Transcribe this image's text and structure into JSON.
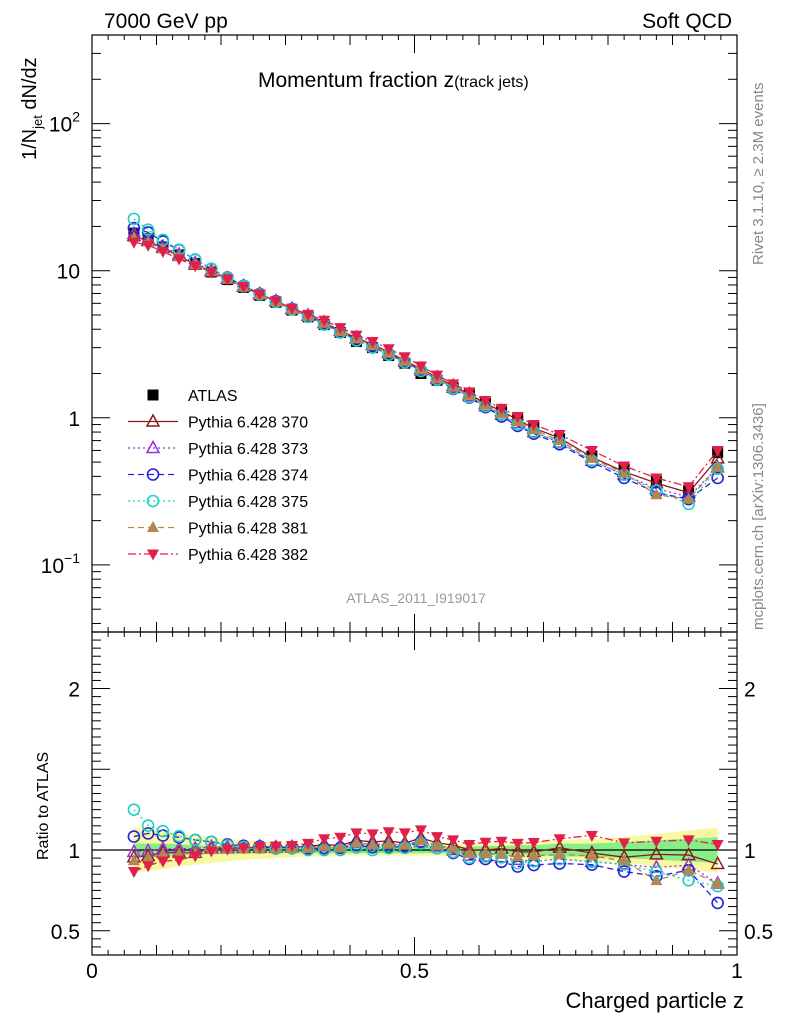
{
  "header": {
    "energy_label": "7000 GeV pp",
    "process_label": "Soft QCD"
  },
  "side_labels": {
    "rivet": "Rivet 3.1.10, ≥ 2.3M events",
    "mcplots": "mcplots.cern.ch [arXiv:1306.3436]"
  },
  "chart_data": [
    {
      "type": "scatter",
      "panel": "main",
      "title_main": "Momentum fraction z",
      "title_sub": "(track jets)",
      "analysis_label": "ATLAS_2011_I919017",
      "ylabel_parts": {
        "a": "1/N",
        "sub": "jet",
        "b": " dN/dz"
      },
      "y_scale": "log",
      "ylim": [
        0.035,
        400
      ],
      "xlim": [
        0,
        1.0
      ],
      "y_ticks": [
        {
          "value": 0.1,
          "base": "10",
          "exp": "−1"
        },
        {
          "value": 1,
          "label": "1"
        },
        {
          "value": 10,
          "label": "10"
        },
        {
          "value": 100,
          "base": "10",
          "exp": "2"
        }
      ],
      "legend_position": "left-middle",
      "x": [
        0.065,
        0.087,
        0.11,
        0.135,
        0.16,
        0.185,
        0.21,
        0.235,
        0.26,
        0.285,
        0.31,
        0.335,
        0.36,
        0.385,
        0.41,
        0.435,
        0.46,
        0.485,
        0.51,
        0.535,
        0.56,
        0.585,
        0.61,
        0.635,
        0.66,
        0.685,
        0.725,
        0.775,
        0.825,
        0.875,
        0.925,
        0.97
      ],
      "series": [
        {
          "name": "ATLAS",
          "color": "#000000",
          "marker": "square",
          "line": "none",
          "values": [
            18,
            16.5,
            14.5,
            12.8,
            11.2,
            9.8,
            8.7,
            7.7,
            6.8,
            6.1,
            5.4,
            4.85,
            4.3,
            3.8,
            3.3,
            3.0,
            2.65,
            2.35,
            2.0,
            1.8,
            1.6,
            1.45,
            1.25,
            1.1,
            0.98,
            0.86,
            0.72,
            0.55,
            0.45,
            0.37,
            0.32,
            0.58
          ]
        },
        {
          "name": "Pythia 6.428 370",
          "color": "#8b1a1a",
          "marker": "triangle-up-open",
          "line": "solid",
          "values": [
            17.2,
            15.9,
            14.3,
            12.6,
            11.0,
            9.9,
            8.8,
            7.8,
            6.9,
            6.2,
            5.5,
            4.95,
            4.45,
            3.9,
            3.5,
            3.15,
            2.8,
            2.45,
            2.15,
            1.88,
            1.65,
            1.45,
            1.25,
            1.11,
            0.97,
            0.85,
            0.73,
            0.54,
            0.43,
            0.36,
            0.31,
            0.53
          ]
        },
        {
          "name": "Pythia 6.428 373",
          "color": "#9b30d0",
          "marker": "triangle-up-open",
          "line": "dotted",
          "values": [
            17.8,
            16.4,
            14.6,
            12.9,
            11.3,
            10.0,
            8.85,
            7.85,
            6.95,
            6.2,
            5.5,
            4.95,
            4.4,
            3.9,
            3.45,
            3.1,
            2.75,
            2.4,
            2.1,
            1.84,
            1.6,
            1.4,
            1.2,
            1.05,
            0.92,
            0.8,
            0.68,
            0.51,
            0.41,
            0.33,
            0.29,
            0.46
          ]
        },
        {
          "name": "Pythia 6.428 374",
          "color": "#2222dd",
          "marker": "circle-open",
          "line": "dashed",
          "values": [
            19.5,
            18.2,
            15.8,
            13.8,
            11.9,
            10.3,
            9.0,
            7.9,
            6.95,
            6.2,
            5.5,
            4.9,
            4.35,
            3.85,
            3.4,
            3.05,
            2.7,
            2.4,
            2.1,
            1.82,
            1.57,
            1.37,
            1.18,
            1.02,
            0.88,
            0.78,
            0.66,
            0.5,
            0.39,
            0.31,
            0.28,
            0.39
          ]
        },
        {
          "name": "Pythia 6.428 375",
          "color": "#20d0c0",
          "marker": "circle-open",
          "line": "dotted",
          "values": [
            22.5,
            19.0,
            16.2,
            13.9,
            11.9,
            10.3,
            8.95,
            7.85,
            6.9,
            6.15,
            5.45,
            4.85,
            4.3,
            3.8,
            3.35,
            3.0,
            2.68,
            2.38,
            2.08,
            1.82,
            1.58,
            1.38,
            1.2,
            1.05,
            0.9,
            0.8,
            0.68,
            0.51,
            0.41,
            0.32,
            0.26,
            0.45
          ]
        },
        {
          "name": "Pythia 6.428 381",
          "color": "#b08850",
          "marker": "triangle-up-filled",
          "line": "dashed",
          "values": [
            16.8,
            15.7,
            14.1,
            12.5,
            11.0,
            9.85,
            8.75,
            7.75,
            6.85,
            6.15,
            5.45,
            4.9,
            4.4,
            3.85,
            3.45,
            3.1,
            2.75,
            2.42,
            2.12,
            1.85,
            1.62,
            1.42,
            1.22,
            1.07,
            0.94,
            0.83,
            0.7,
            0.53,
            0.42,
            0.3,
            0.28,
            0.46
          ]
        },
        {
          "name": "Pythia 6.428 382",
          "color": "#e0204a",
          "marker": "triangle-down-filled",
          "line": "dashdot",
          "values": [
            15.6,
            14.9,
            13.5,
            12.0,
            10.8,
            9.75,
            8.75,
            7.8,
            6.95,
            6.25,
            5.55,
            5.05,
            4.6,
            4.1,
            3.65,
            3.3,
            2.95,
            2.6,
            2.25,
            1.95,
            1.7,
            1.5,
            1.31,
            1.16,
            1.02,
            0.9,
            0.77,
            0.6,
            0.47,
            0.39,
            0.34,
            0.6
          ]
        }
      ]
    },
    {
      "type": "scatter",
      "panel": "ratio",
      "ylabel": "Ratio to ATLAS",
      "xlabel": "Charged particle z",
      "ylim": [
        0.35,
        2.35
      ],
      "xlim": [
        0,
        1.0
      ],
      "y_ticks": [
        {
          "value": 0.5,
          "label": "0.5"
        },
        {
          "value": 1,
          "label": "1"
        },
        {
          "value": 2,
          "label": "2"
        }
      ],
      "x_ticks": [
        {
          "value": 0,
          "label": "0"
        },
        {
          "value": 0.5,
          "label": "0.5"
        },
        {
          "value": 1,
          "label": "1"
        }
      ],
      "reference_line": 1.0,
      "band_inner": {
        "color": "#88ee88",
        "lo": [
          0.96,
          0.96,
          0.96,
          0.965,
          0.97,
          0.975,
          0.975,
          0.978,
          0.98,
          0.98,
          0.98,
          0.98,
          0.98,
          0.98,
          0.98,
          0.98,
          0.98,
          0.98,
          0.98,
          0.98,
          0.98,
          0.98,
          0.975,
          0.975,
          0.97,
          0.97,
          0.96,
          0.96,
          0.95,
          0.94,
          0.93,
          0.92
        ],
        "hi": [
          1.04,
          1.04,
          1.04,
          1.035,
          1.03,
          1.025,
          1.025,
          1.022,
          1.02,
          1.02,
          1.02,
          1.02,
          1.02,
          1.02,
          1.02,
          1.02,
          1.02,
          1.02,
          1.02,
          1.02,
          1.02,
          1.02,
          1.025,
          1.025,
          1.03,
          1.03,
          1.04,
          1.04,
          1.05,
          1.06,
          1.07,
          1.08
        ]
      },
      "band_outer": {
        "color": "#f8f8a0",
        "lo": [
          0.86,
          0.87,
          0.88,
          0.9,
          0.91,
          0.92,
          0.93,
          0.94,
          0.945,
          0.95,
          0.955,
          0.96,
          0.96,
          0.965,
          0.965,
          0.965,
          0.965,
          0.965,
          0.965,
          0.965,
          0.96,
          0.96,
          0.96,
          0.955,
          0.95,
          0.95,
          0.94,
          0.93,
          0.92,
          0.9,
          0.88,
          0.86
        ],
        "hi": [
          1.14,
          1.13,
          1.12,
          1.1,
          1.09,
          1.08,
          1.07,
          1.06,
          1.055,
          1.05,
          1.045,
          1.04,
          1.04,
          1.035,
          1.035,
          1.035,
          1.035,
          1.035,
          1.035,
          1.035,
          1.04,
          1.04,
          1.04,
          1.045,
          1.05,
          1.05,
          1.06,
          1.07,
          1.08,
          1.1,
          1.12,
          1.14
        ]
      }
    }
  ]
}
